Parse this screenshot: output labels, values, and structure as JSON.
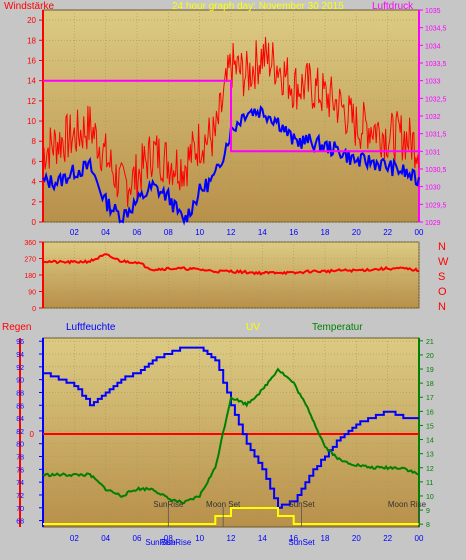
{
  "colors": {
    "background": "#c6c6c6",
    "plot_top": "#dccb84",
    "plot_bottom": "#b8904a",
    "wind_gust": "#ff0000",
    "wind_avg": "#0000ff",
    "pressure": "#ff00ff",
    "direction": "#ff0000",
    "rain": "#ff0000",
    "humidity": "#0000ff",
    "uv": "#ffff00",
    "temperature": "#008000",
    "title_yellow": "#ffff00",
    "red_label": "#ff0000",
    "blue_label": "#0000ff",
    "green_label": "#008000"
  },
  "chart_data": [
    {
      "type": "line",
      "title": "24 hour graph day: November 30 2015",
      "left_label": "Windstärke",
      "right_label": "Luftdruck",
      "x_ticks": [
        "02",
        "04",
        "06",
        "08",
        "10",
        "12",
        "14",
        "16",
        "18",
        "20",
        "22",
        "00"
      ],
      "x": [
        0,
        1,
        2,
        3,
        4,
        5,
        6,
        7,
        8,
        9,
        10,
        11,
        12,
        13,
        14,
        15,
        16,
        17,
        18,
        19,
        20,
        21,
        22,
        23,
        24
      ],
      "left_ticks": [
        "0",
        "2",
        "4",
        "6",
        "8",
        "10",
        "12",
        "14",
        "16",
        "18",
        "20"
      ],
      "left_ylim": [
        0,
        21
      ],
      "right_ticks": [
        "1029",
        "1029,5",
        "1030",
        "1030,5",
        "1031",
        "1031,5",
        "1032",
        "1032,5",
        "1033",
        "1033,5",
        "1034",
        "1034,5",
        "1035"
      ],
      "right_ylim": [
        1029,
        1035
      ],
      "series": [
        {
          "role": "wind_gust",
          "values": [
            6.5,
            7.5,
            8,
            9,
            6,
            3,
            4,
            6.5,
            5.5,
            5,
            7.5,
            8,
            15,
            14,
            16,
            15,
            13,
            13,
            12,
            11,
            9,
            9,
            8,
            8,
            7
          ]
        },
        {
          "role": "wind_avg",
          "values": [
            4,
            4,
            5,
            5.5,
            2,
            0.5,
            2,
            3.5,
            2.5,
            0,
            3,
            4.5,
            9,
            11,
            11,
            10,
            8,
            8,
            7.5,
            7,
            6,
            6,
            5.5,
            5,
            4
          ]
        },
        {
          "role": "pressure",
          "values": [
            1033,
            1033,
            1033,
            1033,
            1033,
            1033,
            1033,
            1033,
            1033,
            1033,
            1033,
            1033,
            1031,
            1031,
            1031,
            1031,
            1031,
            1031,
            1031,
            1031,
            1031,
            1031,
            1031,
            1031,
            1031
          ]
        }
      ]
    },
    {
      "type": "line",
      "right_labels": [
        "N",
        "W",
        "S",
        "O",
        "N"
      ],
      "left_ticks": [
        "0",
        "90",
        "180",
        "270",
        "360"
      ],
      "ylim": [
        0,
        360
      ],
      "x": [
        0,
        1,
        2,
        3,
        4,
        5,
        6,
        7,
        8,
        9,
        10,
        11,
        12,
        13,
        14,
        15,
        16,
        17,
        18,
        19,
        20,
        21,
        22,
        23,
        24
      ],
      "series": [
        {
          "role": "direction",
          "values": [
            255,
            250,
            250,
            255,
            290,
            255,
            250,
            210,
            215,
            215,
            210,
            200,
            200,
            195,
            190,
            195,
            190,
            200,
            200,
            205,
            205,
            210,
            215,
            215,
            205
          ]
        }
      ]
    },
    {
      "type": "line",
      "labels": {
        "rain": "Regen",
        "humidity": "Luftfeuchte",
        "uv": "UV",
        "temperature": "Temperatur"
      },
      "x_ticks": [
        "02",
        "04",
        "06",
        "08",
        "10",
        "12",
        "14",
        "16",
        "18",
        "20",
        "22",
        "00"
      ],
      "x": [
        0,
        1,
        2,
        3,
        4,
        5,
        6,
        7,
        8,
        9,
        10,
        11,
        12,
        13,
        14,
        15,
        16,
        17,
        18,
        19,
        20,
        21,
        22,
        23,
        24
      ],
      "humidity_ticks": [
        "68",
        "70",
        "72",
        "74",
        "76",
        "78",
        "80",
        "82",
        "84",
        "86",
        "88",
        "90",
        "92",
        "94",
        "96"
      ],
      "humidity_ylim": [
        67,
        96.5
      ],
      "temperature_ticks": [
        "8",
        "9",
        "10",
        "11",
        "12",
        "13",
        "14",
        "15",
        "16",
        "17",
        "18",
        "19",
        "20",
        "21"
      ],
      "temperature_ylim": [
        7.8,
        21.2
      ],
      "rain_tick": "0",
      "events": [
        {
          "label": "SunRise",
          "x": 8
        },
        {
          "label": "Moon Set",
          "x": 11.5
        },
        {
          "label": "SunSet",
          "x": 16.5
        },
        {
          "label": "Moon Rise",
          "x": 24
        }
      ],
      "bottom_event_labels": [
        {
          "label": "SunRise",
          "x": 7.5
        },
        {
          "label": "SunRise",
          "x": 8.5
        },
        {
          "label": "SunSet",
          "x": 16.5
        }
      ],
      "series": [
        {
          "role": "humidity",
          "values": [
            91,
            90,
            89,
            86,
            88,
            90,
            91,
            93,
            94,
            95,
            95,
            93,
            86,
            80,
            76,
            70,
            71,
            75,
            78,
            81,
            83,
            84,
            85,
            84,
            84
          ]
        },
        {
          "role": "temperature",
          "values": [
            11.5,
            11.5,
            11.5,
            11.5,
            10.5,
            10,
            10.5,
            10.5,
            9.8,
            9.5,
            10,
            12,
            17,
            16.5,
            17.5,
            19,
            18,
            16,
            13.5,
            12.5,
            12.2,
            12,
            12,
            12,
            11.5
          ]
        },
        {
          "role": "uv",
          "values": [
            0,
            0,
            0,
            0,
            0,
            0,
            0,
            0,
            0,
            0,
            0,
            1,
            2,
            2,
            2,
            1,
            0,
            0,
            0,
            0,
            0,
            0,
            0,
            0,
            0
          ]
        },
        {
          "role": "rain",
          "values": [
            0,
            0,
            0,
            0,
            0,
            0,
            0,
            0,
            0,
            0,
            0,
            0,
            0,
            0,
            0,
            0,
            0,
            0,
            0,
            0,
            0,
            0,
            0,
            0,
            0
          ]
        }
      ]
    }
  ]
}
